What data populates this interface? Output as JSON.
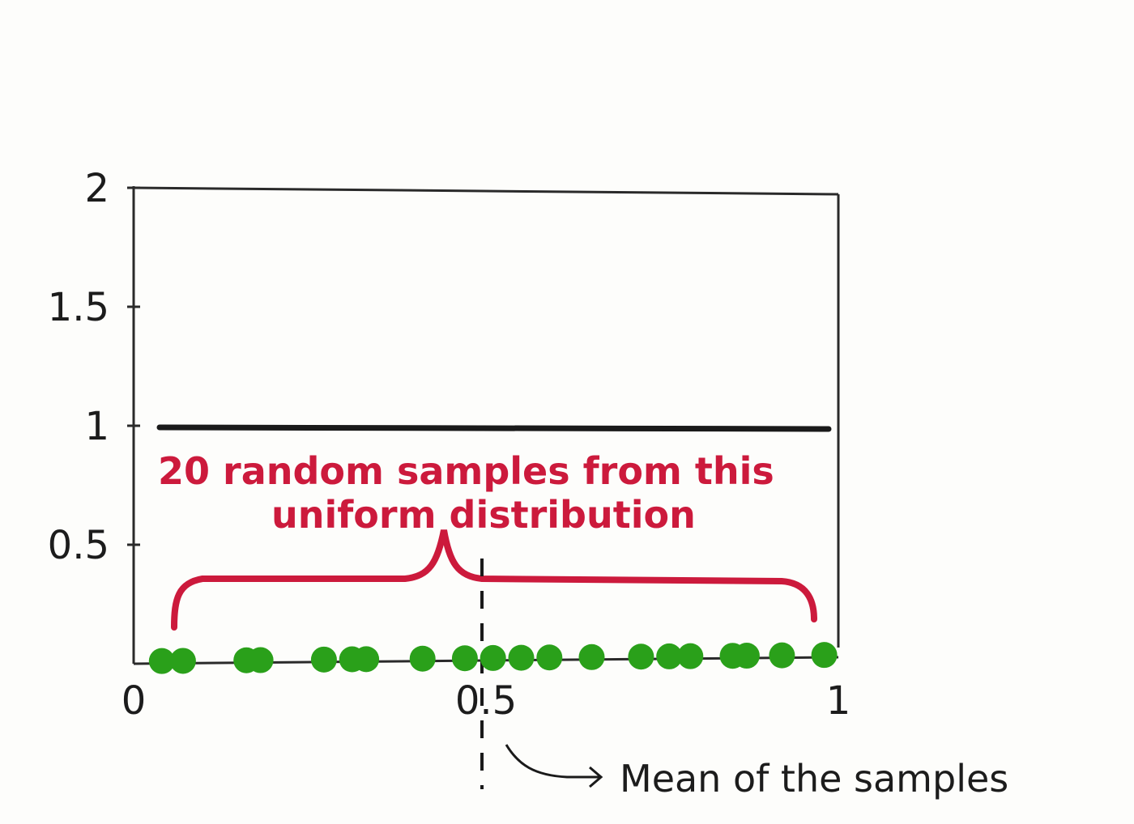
{
  "chart_data": {
    "type": "line",
    "x_ticks": [
      "0",
      "0.5",
      "1"
    ],
    "y_ticks": [
      "0.5",
      "1",
      "1.5",
      "2"
    ],
    "xlim": [
      0,
      1
    ],
    "ylim": [
      0,
      2
    ],
    "density_line": {
      "x": [
        0,
        1
      ],
      "y": [
        1,
        1
      ]
    },
    "samples": [
      0.04,
      0.07,
      0.16,
      0.18,
      0.27,
      0.31,
      0.33,
      0.41,
      0.47,
      0.51,
      0.55,
      0.59,
      0.65,
      0.72,
      0.76,
      0.79,
      0.85,
      0.87,
      0.92,
      0.98
    ],
    "mean": 0.5,
    "annotations": {
      "samples_label_line1": "20 random samples from this",
      "samples_label_line2": "uniform distribution",
      "mean_label": "Mean of the samples"
    }
  },
  "colors": {
    "axis": "#2a2a2a",
    "density_line": "#1a1a1a",
    "samples": "#2aa01a",
    "annotation": "#cc1a3c",
    "mean_line": "#1a1a1a"
  }
}
